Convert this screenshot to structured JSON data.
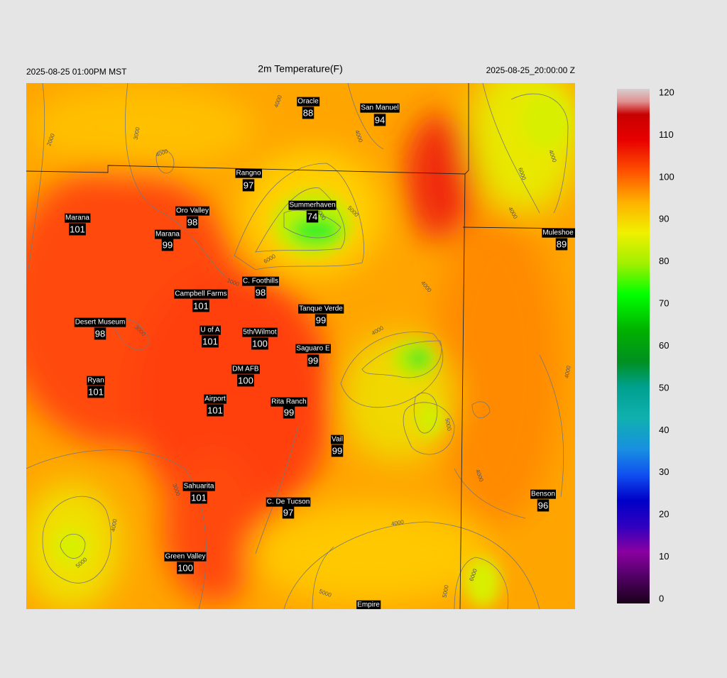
{
  "header": {
    "left": "2025-08-25 01:00PM MST",
    "title": "2m Temperature(F)",
    "right": "2025-08-25_20:00:00 Z"
  },
  "stations": [
    {
      "name": "Oracle",
      "value": "88"
    },
    {
      "name": "San Manuel",
      "value": "94"
    },
    {
      "name": "Rangno",
      "value": "97"
    },
    {
      "name": "Summerhaven",
      "value": "74"
    },
    {
      "name": "Oro Valley",
      "value": "98"
    },
    {
      "name": "Marana",
      "value": "101"
    },
    {
      "name": "Marana",
      "value": "99"
    },
    {
      "name": "Muleshoe R",
      "value": "89"
    },
    {
      "name": "C. Foothills",
      "value": "98"
    },
    {
      "name": "Campbell Farms",
      "value": "101"
    },
    {
      "name": "Tanque Verde",
      "value": "99"
    },
    {
      "name": "Desert Museum",
      "value": "98"
    },
    {
      "name": "U of A",
      "value": "101"
    },
    {
      "name": "5th/Wilmot",
      "value": "100"
    },
    {
      "name": "Saguaro E",
      "value": "99"
    },
    {
      "name": "DM AFB",
      "value": "100"
    },
    {
      "name": "Ryan",
      "value": "101"
    },
    {
      "name": "Airport",
      "value": "101"
    },
    {
      "name": "Rita Ranch",
      "value": "99"
    },
    {
      "name": "Vail",
      "value": "99"
    },
    {
      "name": "Benson",
      "value": "96"
    },
    {
      "name": "Sahuarita",
      "value": "101"
    },
    {
      "name": "C. De Tucson",
      "value": "97"
    },
    {
      "name": "Green Valley",
      "value": "100"
    },
    {
      "name": "Empire"
    }
  ],
  "contour_labels": [
    "2000",
    "3000",
    "4000",
    "4000",
    "4000",
    "5000",
    "6000",
    "5000",
    "6000",
    "3000",
    "3000",
    "4000",
    "4000",
    "4000",
    "5000",
    "4000",
    "4000",
    "3000",
    "4000",
    "5000",
    "5000",
    "5000",
    "6000",
    "4000",
    "4000"
  ],
  "colorbar": {
    "ticks": [
      "0",
      "10",
      "20",
      "30",
      "40",
      "50",
      "60",
      "70",
      "80",
      "90",
      "100",
      "110",
      "120"
    ]
  }
}
